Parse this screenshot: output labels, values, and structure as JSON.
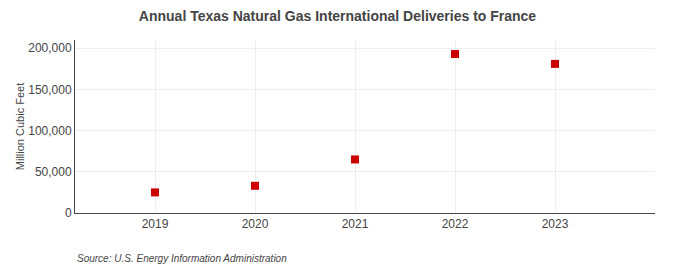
{
  "chart_data": {
    "type": "scatter",
    "title": "Annual Texas Natural Gas International Deliveries to France",
    "ylabel": "Million Cubic Feet",
    "annotations": [
      "Source: U.S. Energy Information Administration"
    ],
    "x": [
      2019,
      2020,
      2021,
      2022,
      2023
    ],
    "values": [
      25000,
      33000,
      65000,
      193000,
      181000
    ],
    "color": "#cc0000",
    "marker": "square",
    "xlim": [
      2018.2,
      2024.0
    ],
    "xticks": [
      2019,
      2020,
      2021,
      2022,
      2023
    ],
    "ylim": [
      0,
      210000
    ],
    "yticks": [
      0,
      {
        "value": 50000,
        "label": "50,000"
      },
      {
        "value": 100000,
        "label": "100,000"
      },
      {
        "value": 150000,
        "label": "150,000"
      },
      {
        "value": 200000,
        "label": "200,000"
      }
    ],
    "grid": true
  }
}
